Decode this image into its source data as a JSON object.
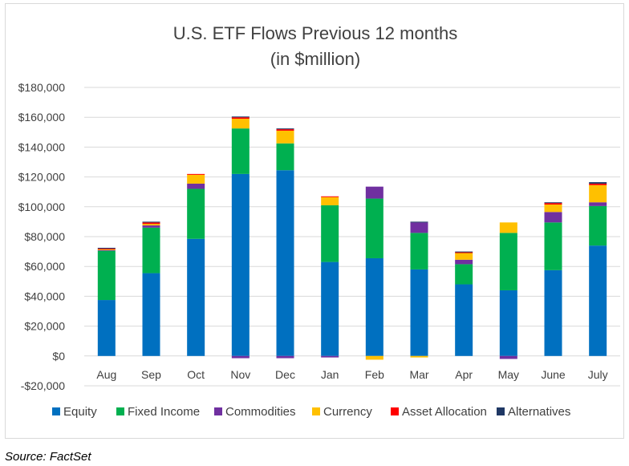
{
  "chart_data": {
    "type": "bar",
    "stacked": true,
    "title": "U.S. ETF Flows Previous 12 months",
    "subtitle": "(in $million)",
    "xlabel": "",
    "ylabel": "",
    "ylim": [
      -20000,
      180000
    ],
    "y_ticks": [
      -20000,
      0,
      20000,
      40000,
      60000,
      80000,
      100000,
      120000,
      140000,
      160000,
      180000
    ],
    "y_tick_labels": [
      "-$20,000",
      "$0",
      "$20,000",
      "$40,000",
      "$60,000",
      "$80,000",
      "$100,000",
      "$120,000",
      "$140,000",
      "$160,000",
      "$180,000"
    ],
    "grid": true,
    "legend_position": "bottom",
    "categories": [
      "Aug",
      "Sep",
      "Oct",
      "Nov",
      "Dec",
      "Jan",
      "Feb",
      "Mar",
      "Apr",
      "May",
      "June",
      "July"
    ],
    "series": [
      {
        "name": "Equity",
        "color": "#0070c0",
        "values": [
          37500,
          55500,
          78500,
          122000,
          124500,
          63000,
          65500,
          58000,
          48000,
          44000,
          57500,
          74000
        ]
      },
      {
        "name": "Fixed Income",
        "color": "#00b050",
        "values": [
          33000,
          30500,
          33500,
          30500,
          18000,
          38000,
          40000,
          24500,
          13500,
          38500,
          32000,
          26500
        ]
      },
      {
        "name": "Commodities",
        "color": "#7030a0",
        "values": [
          500,
          1500,
          3500,
          -1500,
          -1500,
          -1000,
          8000,
          7000,
          3000,
          -2000,
          7000,
          2500
        ]
      },
      {
        "name": "Currency",
        "color": "#ffc000",
        "values": [
          500,
          1000,
          6000,
          6500,
          8500,
          5500,
          -2500,
          -1000,
          4500,
          7000,
          5000,
          11500
        ]
      },
      {
        "name": "Asset Allocation",
        "color": "#ff0000",
        "values": [
          500,
          1000,
          500,
          1000,
          1000,
          500,
          0,
          0,
          500,
          0,
          1000,
          1000
        ]
      },
      {
        "name": "Alternatives",
        "color": "#1f3864",
        "values": [
          500,
          500,
          0,
          500,
          500,
          0,
          0,
          500,
          500,
          0,
          500,
          1000
        ]
      }
    ]
  },
  "source_note": "Source: FactSet"
}
